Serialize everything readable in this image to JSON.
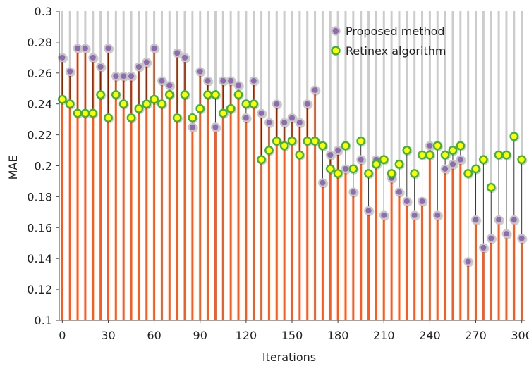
{
  "chart_data": {
    "type": "scatter",
    "xlabel": "Iterations",
    "ylabel": "MAE",
    "xlim": [
      -2,
      302
    ],
    "ylim": [
      0.1,
      0.3
    ],
    "x_ticks": [
      0,
      30,
      60,
      90,
      120,
      150,
      180,
      210,
      240,
      270,
      300
    ],
    "y_ticks": [
      0.1,
      0.12,
      0.14,
      0.16,
      0.18,
      0.2,
      0.22,
      0.24,
      0.26,
      0.28,
      0.3
    ],
    "x_tick_labels": [
      "0",
      "30",
      "60",
      "90",
      "120",
      "150",
      "180",
      "210",
      "240",
      "270",
      "300"
    ],
    "y_tick_labels": [
      "0.1",
      "0.12",
      "0.14",
      "0.16",
      "0.18",
      "0.2",
      "0.22",
      "0.24",
      "0.26",
      "0.28",
      "0.3"
    ],
    "legend_position": "top-right",
    "grid": "vertical dropline at every x value",
    "x": [
      0,
      5,
      10,
      15,
      20,
      25,
      30,
      35,
      40,
      45,
      50,
      55,
      60,
      65,
      70,
      75,
      80,
      85,
      90,
      95,
      100,
      105,
      110,
      115,
      120,
      125,
      130,
      135,
      140,
      145,
      150,
      155,
      160,
      165,
      170,
      175,
      180,
      185,
      190,
      195,
      200,
      205,
      210,
      215,
      220,
      225,
      230,
      235,
      240,
      245,
      250,
      255,
      260,
      265,
      270,
      275,
      280,
      285,
      290,
      295,
      300
    ],
    "series": [
      {
        "name": "Proposed method",
        "color": "#8e6bb0",
        "ring_color": "#c6c6c6",
        "values": [
          0.27,
          0.261,
          0.276,
          0.276,
          0.27,
          0.264,
          0.276,
          0.258,
          0.258,
          0.258,
          0.264,
          0.267,
          0.276,
          0.255,
          0.252,
          0.273,
          0.27,
          0.225,
          0.261,
          0.255,
          0.225,
          0.255,
          0.255,
          0.252,
          0.231,
          0.255,
          0.234,
          0.228,
          0.24,
          0.228,
          0.231,
          0.228,
          0.24,
          0.249,
          0.189,
          0.207,
          0.21,
          0.198,
          0.183,
          0.204,
          0.171,
          0.204,
          0.168,
          0.192,
          0.183,
          0.177,
          0.168,
          0.177,
          0.213,
          0.168,
          0.198,
          0.201,
          0.204,
          0.138,
          0.165,
          0.147,
          0.153,
          0.165,
          0.156,
          0.165,
          0.153
        ]
      },
      {
        "name": "Retinex algorithm",
        "color": "#ffff00",
        "ring_color": "#40b040",
        "values": [
          0.243,
          0.24,
          0.234,
          0.234,
          0.234,
          0.246,
          0.231,
          0.246,
          0.24,
          0.231,
          0.237,
          0.24,
          0.243,
          0.24,
          0.246,
          0.231,
          0.246,
          0.231,
          0.237,
          0.246,
          0.246,
          0.234,
          0.237,
          0.246,
          0.24,
          0.24,
          0.204,
          0.21,
          0.216,
          0.213,
          0.216,
          0.207,
          0.216,
          0.216,
          0.213,
          0.198,
          0.195,
          0.213,
          0.198,
          0.216,
          0.195,
          0.201,
          0.204,
          0.195,
          0.201,
          0.21,
          0.195,
          0.207,
          0.207,
          0.213,
          0.207,
          0.21,
          0.213,
          0.195,
          0.198,
          0.204,
          0.186,
          0.207,
          0.207,
          0.219,
          0.204
        ]
      }
    ]
  },
  "colors": {
    "dropline_gray": "#cccccc",
    "connector_dark": "#333333",
    "bar_orange": "#ff5a1e",
    "axis": "#444444"
  }
}
